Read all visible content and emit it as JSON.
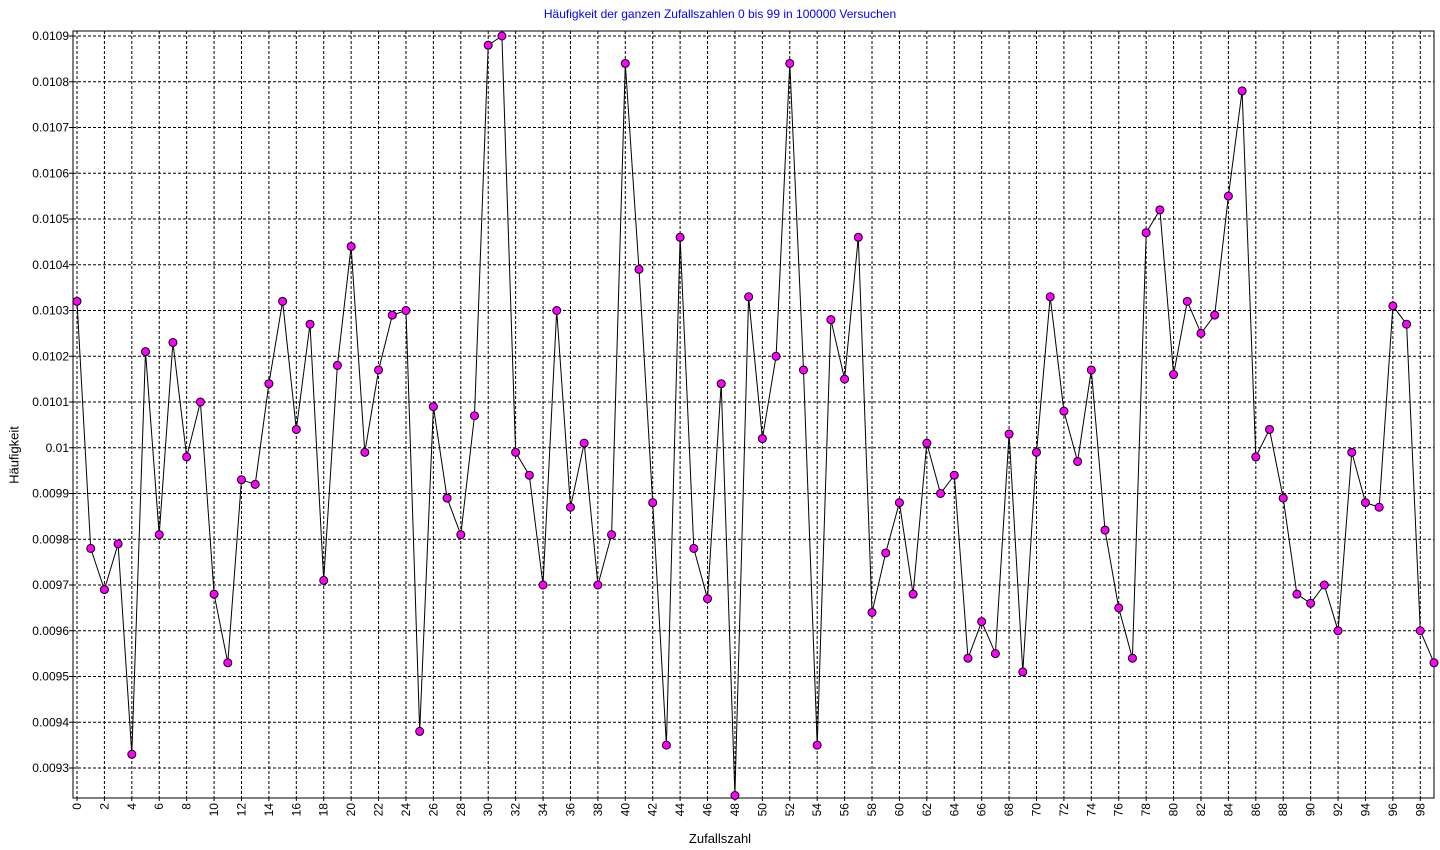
{
  "chart_data": {
    "type": "line",
    "title": "Häufigkeit der ganzen Zufallszahlen 0 bis 99 in 100000 Versuchen",
    "xlabel": "Zufallszahl",
    "ylabel": "Häufigkeit",
    "xlim": [
      0,
      99
    ],
    "ylim": [
      0.00924,
      0.0109
    ],
    "grid": true,
    "marker_color": "#ff00ff",
    "title_color": "#0000ff",
    "line_color": "#000000",
    "yticks": [
      "0.0093",
      "0.0094",
      "0.0095",
      "0.0096",
      "0.0097",
      "0.0098",
      "0.0099",
      "0.01",
      "0.0101",
      "0.0102",
      "0.0103",
      "0.0104",
      "0.0105",
      "0.0106",
      "0.0107",
      "0.0108",
      "0.0109"
    ],
    "xticks": [
      "0",
      "2",
      "4",
      "6",
      "8",
      "10",
      "12",
      "14",
      "16",
      "18",
      "20",
      "22",
      "24",
      "26",
      "28",
      "30",
      "32",
      "34",
      "36",
      "38",
      "40",
      "42",
      "44",
      "46",
      "48",
      "50",
      "52",
      "54",
      "56",
      "58",
      "60",
      "62",
      "64",
      "66",
      "68",
      "70",
      "72",
      "74",
      "76",
      "78",
      "80",
      "82",
      "84",
      "86",
      "88",
      "90",
      "92",
      "94",
      "96",
      "98"
    ],
    "x": [
      0,
      1,
      2,
      3,
      4,
      5,
      6,
      7,
      8,
      9,
      10,
      11,
      12,
      13,
      14,
      15,
      16,
      17,
      18,
      19,
      20,
      21,
      22,
      23,
      24,
      25,
      26,
      27,
      28,
      29,
      30,
      31,
      32,
      33,
      34,
      35,
      36,
      37,
      38,
      39,
      40,
      41,
      42,
      43,
      44,
      45,
      46,
      47,
      48,
      49,
      50,
      51,
      52,
      53,
      54,
      55,
      56,
      57,
      58,
      59,
      60,
      61,
      62,
      63,
      64,
      65,
      66,
      67,
      68,
      69,
      70,
      71,
      72,
      73,
      74,
      75,
      76,
      77,
      78,
      79,
      80,
      81,
      82,
      83,
      84,
      85,
      86,
      87,
      88,
      89,
      90,
      91,
      92,
      93,
      94,
      95,
      96,
      97,
      98,
      99
    ],
    "values": [
      0.01032,
      0.00978,
      0.00969,
      0.00979,
      0.00933,
      0.01021,
      0.00981,
      0.01023,
      0.00998,
      0.0101,
      0.00968,
      0.00953,
      0.00993,
      0.00992,
      0.01014,
      0.01032,
      0.01004,
      0.01027,
      0.00971,
      0.01018,
      0.01044,
      0.00999,
      0.01017,
      0.01029,
      0.0103,
      0.00938,
      0.01009,
      0.00989,
      0.00981,
      0.01007,
      0.01088,
      0.0109,
      0.00999,
      0.00994,
      0.0097,
      0.0103,
      0.00987,
      0.01001,
      0.0097,
      0.00981,
      0.01084,
      0.01039,
      0.00988,
      0.00935,
      0.01046,
      0.00978,
      0.00967,
      0.01014,
      0.00924,
      0.01033,
      0.01002,
      0.0102,
      0.01084,
      0.01017,
      0.00935,
      0.01028,
      0.01015,
      0.01046,
      0.00964,
      0.00977,
      0.00988,
      0.00968,
      0.01001,
      0.0099,
      0.00994,
      0.00954,
      0.00962,
      0.00955,
      0.01003,
      0.00951,
      0.00999,
      0.01033,
      0.01008,
      0.00997,
      0.01017,
      0.00982,
      0.00965,
      0.00954,
      0.01047,
      0.01052,
      0.01016,
      0.01032,
      0.01025,
      0.01029,
      0.01055,
      0.01078,
      0.00998,
      0.01004,
      0.00989,
      0.00968,
      0.00966,
      0.0097,
      0.0096,
      0.00999,
      0.00988,
      0.00987,
      0.01031,
      0.01027,
      0.0096,
      0.00953
    ]
  }
}
